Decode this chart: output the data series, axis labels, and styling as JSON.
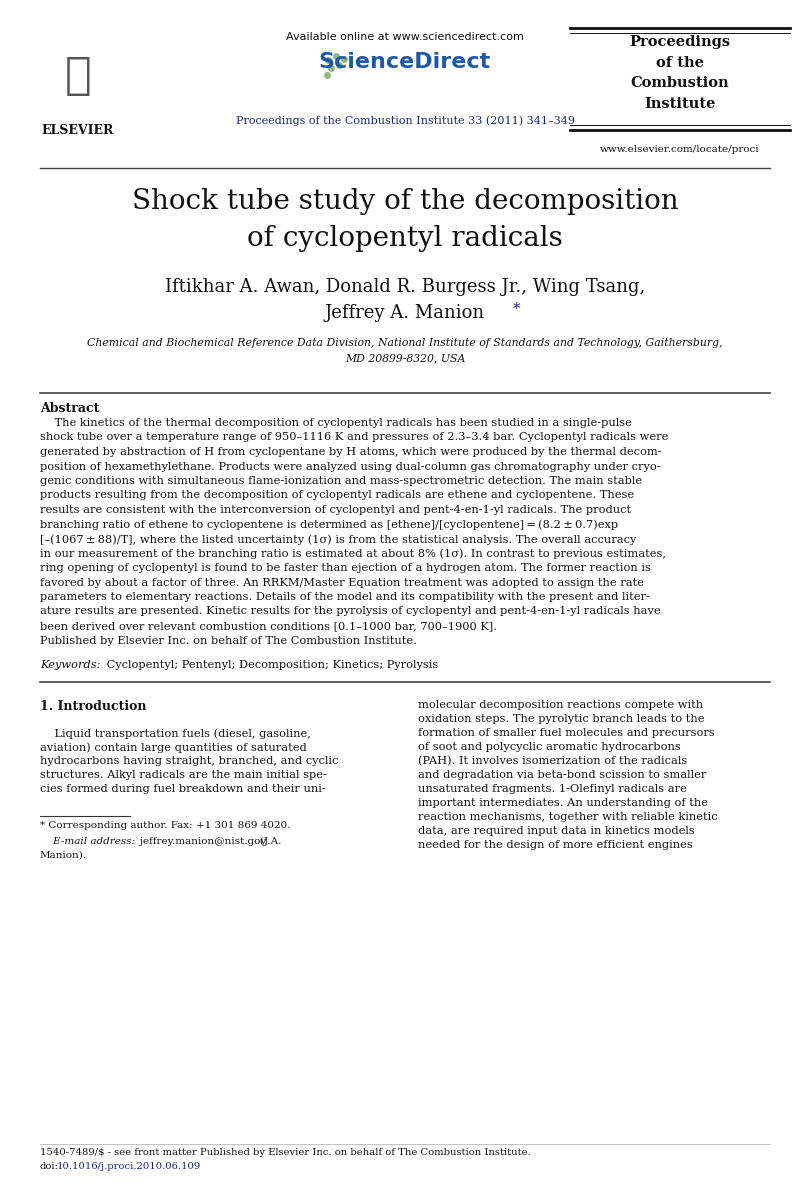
{
  "bg_color": "#ffffff",
  "title_line1": "Shock tube study of the decomposition",
  "title_line2": "of cyclopentyl radicals",
  "author_line1": "Iftikhar A. Awan, Donald R. Burgess Jr., Wing Tsang,",
  "author_line2": "Jeffrey A. Manion",
  "author_star": " *",
  "affil1": "Chemical and Biochemical Reference Data Division, National Institute of Standards and Technology, Gaithersburg,",
  "affil2": "MD 20899-8320, USA",
  "header_available": "Available online at www.sciencedirect.com",
  "header_journal": "Proceedings of the Combustion Institute 33 (2011) 341–349",
  "header_journal_color": "#1a237e",
  "proceedings_text": "Proceedings\nof the\nCombustion\nInstitute",
  "website": "www.elsevier.com/locate/proci",
  "abstract_heading": "Abstract",
  "abstract_para": "    The kinetics of the thermal decomposition of cyclopentyl radicals has been studied in a single-pulse shock tube over a temperature range of 950–1116 K and pressures of 2.3–3.4 bar. Cyclopentyl radicals were generated by abstraction of H from cyclopentane by H atoms, which were produced by the thermal decomposition of hexamethylethane. Products were analyzed using dual-column gas chromatography under cryogenic conditions with simultaneous flame-ionization and mass-spectrometric detection. The main stable products resulting from the decomposition of cyclopentyl radicals are ethene and cyclopentene. These results are consistent with the interconversion of cyclopentyl and pent-4-en-1-yl radicals. The product branching ratio of ethene to cyclopentene is determined as [ethene]/[cyclopentene] = (8.2 ± 0.7)exp [–(1067 ± 88)/T], where the listed uncertainty (1σ) is from the statistical analysis. The overall accuracy in our measurement of the branching ratio is estimated at about 8% (1σ). In contrast to previous estimates, ring opening of cyclopentyl is found to be faster than ejection of a hydrogen atom. The former reaction is favored by about a factor of three. An RRKM/Master Equation treatment was adopted to assign the rate parameters to elementary reactions. Details of the model and its compatibility with the present and literature results are presented. Kinetic results for the pyrolysis of cyclopentyl and pent-4-en-1-yl radicals have been derived over relevant combustion conditions [0.1–1000 bar, 700–1900 K].",
  "abstract_published": "Published by Elsevier Inc. on behalf of The Combustion Institute.",
  "keywords_italic": "Keywords:",
  "keywords_normal": " Cyclopentyl; Pentenyl; Decomposition; Kinetics; Pyrolysis",
  "intro_heading": "1. Introduction",
  "intro_col1_lines": [
    "    Liquid transportation fuels (diesel, gasoline,",
    "aviation) contain large quantities of saturated",
    "hydrocarbons having straight, branched, and cyclic",
    "structures. Alkyl radicals are the main initial spe-",
    "cies formed during fuel breakdown and their uni-"
  ],
  "intro_col2_lines": [
    "molecular decomposition reactions compete with",
    "oxidation steps. The pyrolytic branch leads to the",
    "formation of smaller fuel molecules and precursors",
    "of soot and polycyclic aromatic hydrocarbons",
    "(PAH). It involves isomerization of the radicals",
    "and degradation via beta-bond scission to smaller",
    "unsaturated fragments. 1-Olefinyl radicals are",
    "important intermediates. An understanding of the",
    "reaction mechanisms, together with reliable kinetic",
    "data, are required input data in kinetics models",
    "needed for the design of more efficient engines"
  ],
  "footnote_line1": "* Corresponding author. Fax: +1 301 869 4020.",
  "footnote_line2a": "    E-mail address:",
  "footnote_line2b": "   jeffrey.manion@nist.gov",
  "footnote_line2c": "   (J.A.",
  "footnote_line3": "Manion).",
  "footer_line1": "1540-7489/$ - see front matter Published by Elsevier Inc. on behalf of The Combustion Institute.",
  "footer_doi_pre": "doi:",
  "footer_doi_link": "10.1016/j.proci.2010.06.109",
  "footer_doi_color": "#1a237e",
  "sd_color": "#2058a8",
  "dot_color": "#8fb87a",
  "star_color": "#1a237e"
}
